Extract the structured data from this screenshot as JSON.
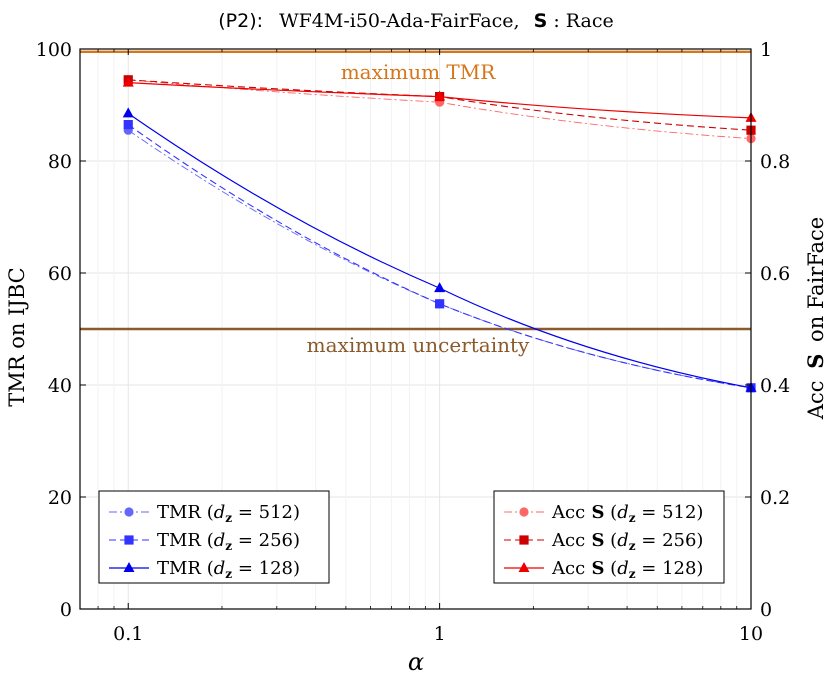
{
  "chart_data": {
    "type": "line",
    "title_prefix": "(P2):",
    "title_body": "WF4M-i50-Ada-FairFace,",
    "title_bold": "S",
    "title_suffix": ": Race",
    "xlabel": "α",
    "ylabel": "TMR on IJBC",
    "ylabel2_prefix": "Acc",
    "ylabel2_bold": "S",
    "ylabel2_suffix": "on FairFace",
    "x_scale": "log",
    "xlim": [
      0.07,
      10
    ],
    "ylim": [
      0,
      100
    ],
    "y2lim": [
      0,
      1
    ],
    "x_ticks": [
      0.1,
      1,
      10
    ],
    "x_tick_labels": [
      "0.1",
      "1",
      "10"
    ],
    "y_ticks": [
      0,
      20,
      40,
      60,
      80,
      100
    ],
    "y_tick_labels": [
      "0",
      "20",
      "40",
      "60",
      "80",
      "100"
    ],
    "y2_ticks": [
      0,
      0.2,
      0.4,
      0.6,
      0.8,
      1
    ],
    "y2_tick_labels": [
      "0",
      "0.2",
      "0.4",
      "0.6",
      "0.8",
      "1"
    ],
    "x": [
      0.1,
      1,
      10
    ],
    "hlines": [
      {
        "name": "max-tmr",
        "y": 99.5,
        "label": "maximum TMR",
        "color": "#d5761a",
        "label_position": "above"
      },
      {
        "name": "max-uncertainty",
        "y": 50,
        "label": "maximum uncertainty",
        "color": "#8b5a2b",
        "label_position": "below"
      }
    ],
    "series": [
      {
        "name": "TMR-512",
        "legend": "TMR",
        "sym": "512",
        "axis": "left",
        "values": [
          85.5,
          54.5,
          39.5
        ],
        "color": "#6666ff",
        "dash": "8,3,2,3",
        "marker": "circle",
        "width": 0.9
      },
      {
        "name": "TMR-256",
        "legend": "TMR",
        "sym": "256",
        "axis": "left",
        "values": [
          86.5,
          54.5,
          39.5
        ],
        "color": "#3333ff",
        "dash": "7,4",
        "marker": "square",
        "width": 1.1
      },
      {
        "name": "TMR-128",
        "legend": "TMR",
        "sym": "128",
        "axis": "left",
        "values": [
          88.5,
          57.3,
          39.5
        ],
        "color": "#0000ee",
        "dash": "",
        "marker": "triangle",
        "width": 1.2
      },
      {
        "name": "Acc-512",
        "legend": "Acc",
        "sym": "512",
        "axis": "right",
        "values": [
          0.945,
          0.905,
          0.84
        ],
        "color": "#ff6666",
        "dash": "8,3,2,3",
        "marker": "circle",
        "width": 0.9
      },
      {
        "name": "Acc-256",
        "legend": "Acc",
        "sym": "256",
        "axis": "right",
        "values": [
          0.945,
          0.915,
          0.855
        ],
        "color": "#cc0000",
        "dash": "7,4",
        "marker": "square",
        "width": 1.1
      },
      {
        "name": "Acc-128",
        "legend": "Acc",
        "sym": "128",
        "axis": "right",
        "values": [
          0.94,
          0.915,
          0.877
        ],
        "color": "#ee0000",
        "dash": "",
        "marker": "triangle",
        "width": 1.2
      }
    ],
    "legend_left": {
      "position": "bottom-left",
      "items": [
        "TMR-512",
        "TMR-256",
        "TMR-128"
      ]
    },
    "legend_right": {
      "position": "bottom-right",
      "items": [
        "Acc-512",
        "Acc-256",
        "Acc-128"
      ]
    },
    "legend_bold": "S",
    "legend_var": "d",
    "legend_subscript": "z",
    "legend_eq": "="
  }
}
